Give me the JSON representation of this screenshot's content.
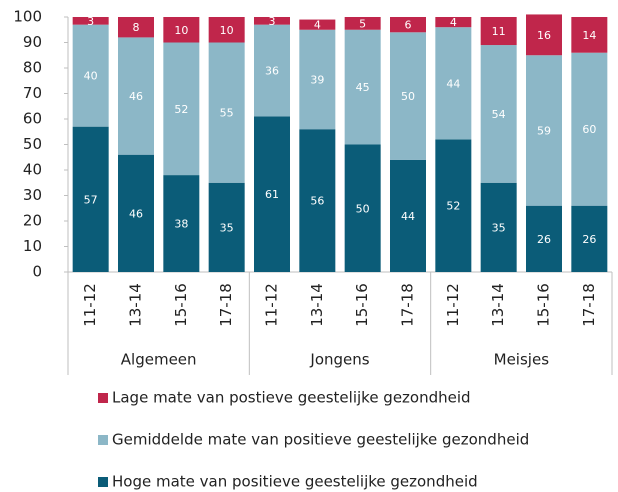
{
  "chart_data": {
    "type": "stacked_bar",
    "categories": [
      "11-12",
      "13-14",
      "15-16",
      "17-18",
      "11-12",
      "13-14",
      "15-16",
      "17-18",
      "11-12",
      "13-14",
      "15-16",
      "17-18"
    ],
    "groups": [
      "Algemeen",
      "Jongens",
      "Meisjes"
    ],
    "series": [
      {
        "name": "Hoge mate van positieve geestelijke gezondheid",
        "color": "#0b5c78",
        "values": [
          57,
          46,
          38,
          35,
          61,
          56,
          50,
          44,
          52,
          35,
          26,
          26
        ]
      },
      {
        "name": "Gemiddelde mate van positieve geestelijke gezondheid",
        "color": "#8cb7c7",
        "values": [
          40,
          46,
          52,
          55,
          36,
          39,
          45,
          50,
          44,
          54,
          59,
          60
        ]
      },
      {
        "name": "Lage mate van postieve geestelijke gezondheid",
        "color": "#c0264b",
        "values": [
          3,
          8,
          10,
          10,
          3,
          4,
          5,
          6,
          4,
          11,
          16,
          14
        ]
      }
    ],
    "ylim": [
      0,
      100
    ],
    "yticks": [
      0,
      10,
      20,
      30,
      40,
      50,
      60,
      70,
      80,
      90,
      100
    ],
    "legend": "bottom"
  }
}
